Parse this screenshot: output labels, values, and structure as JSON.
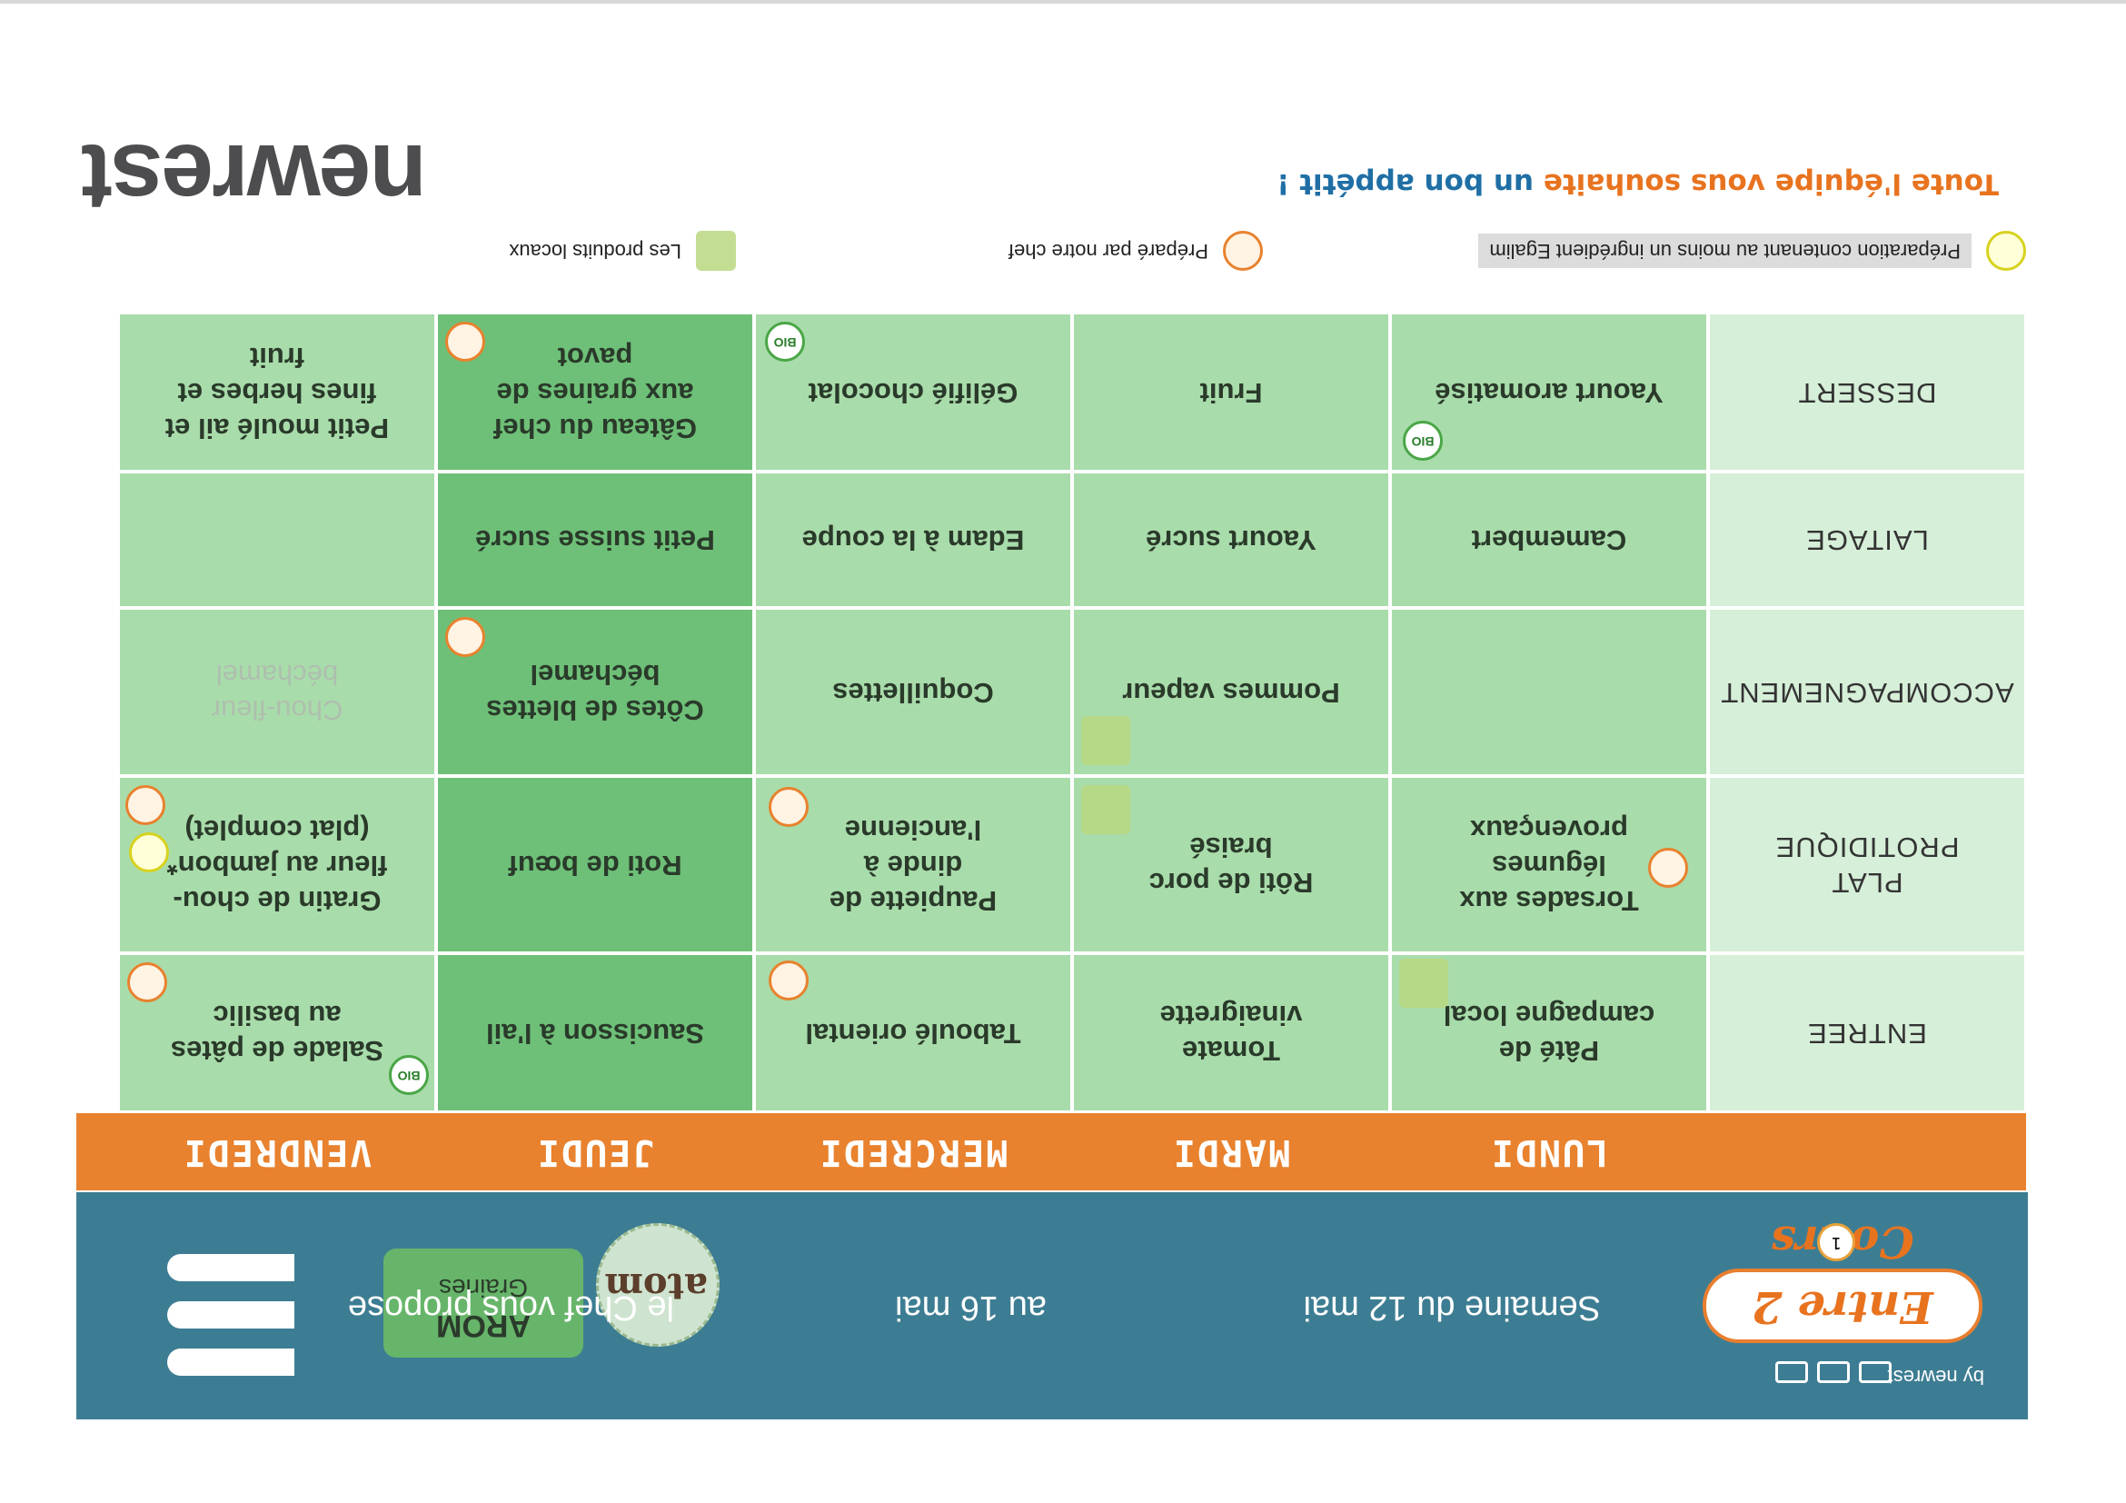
{
  "brand": {
    "title": "Entre 2 Cours",
    "by": "by newrest",
    "page_num": "1"
  },
  "header": {
    "week_start": "Semaine du 12 mai",
    "week_end": "au 16 mai",
    "chef": "le Chef vous propose",
    "sticker": "atom",
    "badge_title": "AROM",
    "badge_sub": "Graines"
  },
  "days": [
    "LUNDI",
    "MARDI",
    "MERCREDI",
    "JEUDI",
    "VENDREDI"
  ],
  "categories": [
    "ENTREE",
    "PLAT PROTIDIQUE",
    "ACCOMPAGNEMENT",
    "LAITAGE",
    "DESSERT"
  ],
  "menu": {
    "entree": [
      "Pâté de campagne local",
      "Tomate vinaigrette",
      "Taboulé oriental",
      "Saucisson à l'ail",
      "Salade de pâtes au basilic"
    ],
    "plat": [
      "Torsades aux légumes provençaux",
      "Rôti de porc braisé",
      "Paupiette de dinde à l'ancienne",
      "Roti de bœuf",
      "Gratin de chou-fleur au jambon* (plat complet)"
    ],
    "accompagnement": [
      "",
      "Pommes vapeur",
      "Coquillettes",
      "Côtes de blettes béchamel",
      "Chou-fleur béchamel"
    ],
    "laitage": [
      "Camembert",
      "Yaourt sucré",
      "Edam à la coupe",
      "Petit suisse sucré",
      ""
    ],
    "dessert": [
      "Yaourt aromatisé",
      "Fruit",
      "Gélifié chocolat",
      "Gâteau du chef aux graines de pavot",
      "Petit moulé ail et fines herbes et fruit"
    ]
  },
  "badges": {
    "bio": "BIO"
  },
  "legend": {
    "egalim": "Préparation contenant au moins un ingrédient Egalim",
    "chef": "Préparé par notre chef",
    "local": "Les produits locaux"
  },
  "footer": {
    "appetit_1": "Toute l'équipe vous souhaite",
    "appetit_2": "un bon appétit !",
    "company": "newrest"
  },
  "colors": {
    "header_blue": "#3d7d93",
    "day_orange": "#e8822e",
    "cat_green": "#d6efd8",
    "day_green": "#a9dcab",
    "thursday_green": "#6ec078"
  }
}
